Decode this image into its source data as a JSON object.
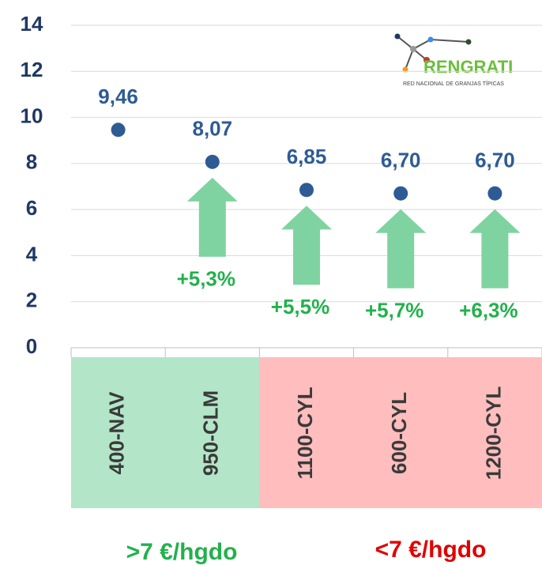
{
  "chart_data": {
    "type": "scatter",
    "categories": [
      "400-NAV",
      "950-CLM",
      "1100-CYL",
      "600-CYL",
      "1200-CYL"
    ],
    "values": [
      9.46,
      8.07,
      6.85,
      6.7,
      6.7
    ],
    "value_labels": [
      "9,46",
      "8,07",
      "6,85",
      "6,70",
      "6,70"
    ],
    "color": "#2e5b94",
    "changes": [
      null,
      5.3,
      5.5,
      5.7,
      6.3
    ],
    "change_labels": [
      null,
      "+5,3%",
      "+5,5%",
      "+5,7%",
      "+6,3%"
    ],
    "change_color": "#7fd3a0",
    "ylim": [
      0,
      14
    ],
    "yticks": [
      0,
      2,
      4,
      6,
      8,
      10,
      12,
      14
    ],
    "grid": true,
    "groups": [
      ">7 €/hgdo",
      "<7 €/hgdo"
    ],
    "logo": {
      "name": "RENGRATI",
      "subtitle": "RED NACIONAL DE GRANJAS TÍPICAS"
    }
  }
}
